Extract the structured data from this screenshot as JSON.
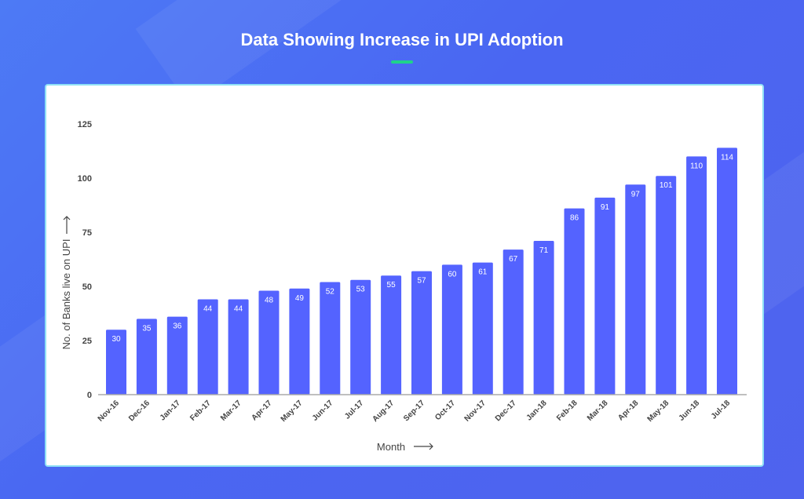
{
  "header": {
    "title": "Data Showing Increase in UPI Adoption"
  },
  "colors": {
    "bar": "#5463ff",
    "accent": "#1fd38a"
  },
  "chart_data": {
    "type": "bar",
    "title": "Data Showing Increase in UPI Adoption",
    "xlabel": "Month",
    "ylabel": "No. of Banks live on UPI",
    "ylim": [
      0,
      125
    ],
    "yticks": [
      0,
      25,
      50,
      75,
      100,
      125
    ],
    "grid": false,
    "categories": [
      "Nov-16",
      "Dec-16",
      "Jan-17",
      "Feb-17",
      "Mar-17",
      "Apr-17",
      "May-17",
      "Jun-17",
      "Jul-17",
      "Aug-17",
      "Sep-17",
      "Oct-17",
      "Nov-17",
      "Dec-17",
      "Jan-18",
      "Feb-18",
      "Mar-18",
      "Apr-18",
      "May-18",
      "Jun-18",
      "Jul-18"
    ],
    "values": [
      30,
      35,
      36,
      44,
      44,
      48,
      49,
      52,
      53,
      55,
      57,
      60,
      61,
      67,
      71,
      86,
      91,
      97,
      101,
      110,
      114
    ]
  }
}
